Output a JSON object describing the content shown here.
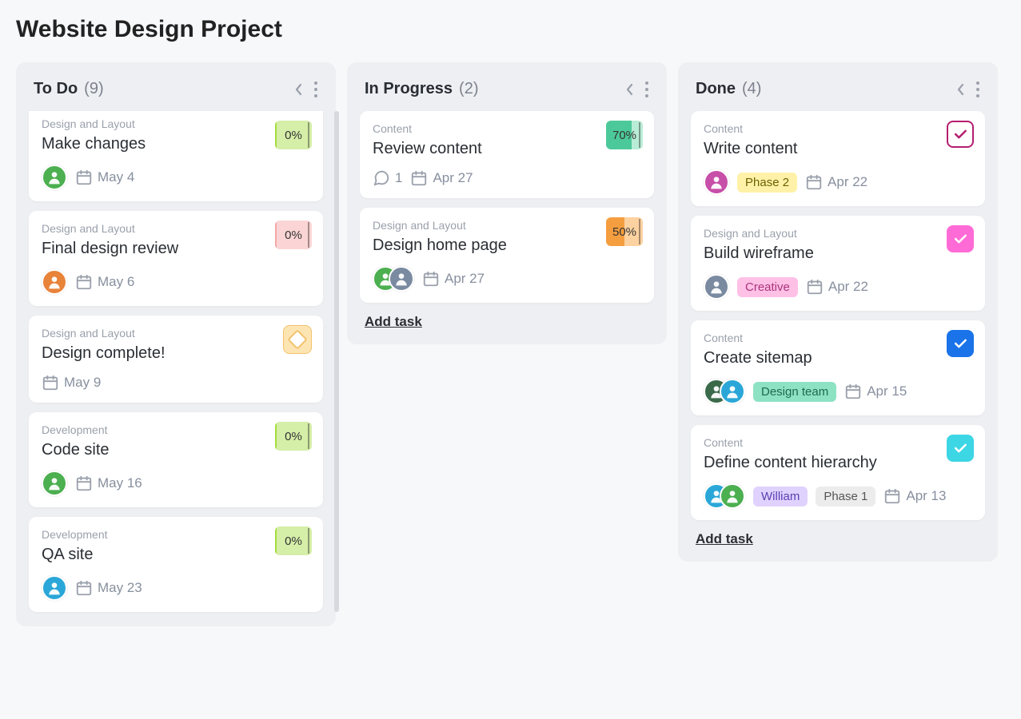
{
  "page": {
    "title": "Website Design Project"
  },
  "add_task_label": "Add task",
  "colors": {
    "progress_green_bg": "#d5eea8",
    "progress_green_fill": "#a4dd3d",
    "progress_pink_bg": "#fbd5d5",
    "progress_pink_fill": "#f5a6a6",
    "progress_teal_bg": "#b9ecd6",
    "progress_teal_fill": "#4cc99a",
    "progress_orange_bg": "#fdd2a1",
    "progress_orange_fill": "#f59e3f",
    "check_magenta": "#b51e6f",
    "check_pink": "#ff6bd6",
    "check_blue": "#1a73e8",
    "check_cyan": "#3dd6e5",
    "tag_yellow": "#fff2a8",
    "tag_pink": "#ffc0e6",
    "tag_green": "#8ee2c4",
    "tag_purple": "#e0d2ff",
    "tag_grey": "#ececec"
  },
  "columns": [
    {
      "title": "To Do",
      "count": "(9)",
      "scrollhint": true,
      "show_add": false,
      "cards": [
        {
          "cut_top": true,
          "category": "Design and Layout",
          "title": "Make changes",
          "badge": {
            "type": "progress",
            "pct": "0%",
            "bg": "progress_green_bg",
            "fill": "progress_green_fill",
            "fillw": "4%"
          },
          "avatars": [
            {
              "bg": "#4caf50"
            }
          ],
          "date": "May 4"
        },
        {
          "category": "Design and Layout",
          "title": "Final design review",
          "badge": {
            "type": "progress",
            "pct": "0%",
            "bg": "progress_pink_bg",
            "fill": "progress_pink_fill",
            "fillw": "4%"
          },
          "avatars": [
            {
              "bg": "#e8833a"
            }
          ],
          "date": "May 6"
        },
        {
          "category": "Design and Layout",
          "title": "Design complete!",
          "badge": {
            "type": "milestone"
          },
          "avatars": [],
          "date": "May 9"
        },
        {
          "category": "Development",
          "title": "Code site",
          "badge": {
            "type": "progress",
            "pct": "0%",
            "bg": "progress_green_bg",
            "fill": "progress_green_fill",
            "fillw": "4%"
          },
          "avatars": [
            {
              "bg": "#4caf50"
            }
          ],
          "date": "May 16"
        },
        {
          "category": "Development",
          "title": "QA site",
          "badge": {
            "type": "progress",
            "pct": "0%",
            "bg": "progress_green_bg",
            "fill": "progress_green_fill",
            "fillw": "4%"
          },
          "avatars": [
            {
              "bg": "#2aa7d8"
            }
          ],
          "date": "May 23"
        }
      ]
    },
    {
      "title": "In Progress",
      "count": "(2)",
      "scrollhint": false,
      "show_add": true,
      "cards": [
        {
          "category": "Content",
          "title": "Review content",
          "badge": {
            "type": "progress",
            "pct": "70%",
            "bg": "progress_teal_bg",
            "fill": "progress_teal_fill",
            "fillw": "70%"
          },
          "avatars": [],
          "comments": "1",
          "date": "Apr 27"
        },
        {
          "category": "Design and Layout",
          "title": "Design home page",
          "badge": {
            "type": "progress",
            "pct": "50%",
            "bg": "progress_orange_bg",
            "fill": "progress_orange_fill",
            "fillw": "50%"
          },
          "avatars": [
            {
              "bg": "#4caf50"
            },
            {
              "bg": "#7a8aa0"
            }
          ],
          "date": "Apr 27"
        }
      ]
    },
    {
      "title": "Done",
      "count": "(4)",
      "scrollhint": false,
      "show_add": true,
      "cards": [
        {
          "category": "Content",
          "title": "Write content",
          "badge": {
            "type": "check",
            "style": "outline",
            "color": "check_magenta"
          },
          "avatars": [
            {
              "bg": "#c74fa8"
            }
          ],
          "tags": [
            {
              "text": "Phase 2",
              "bg": "tag_yellow",
              "fg": "#6b6200"
            }
          ],
          "date": "Apr 22"
        },
        {
          "category": "Design and Layout",
          "title": "Build wireframe",
          "badge": {
            "type": "check",
            "style": "solid",
            "color": "check_pink"
          },
          "avatars": [
            {
              "bg": "#7a8aa0"
            }
          ],
          "tags": [
            {
              "text": "Creative",
              "bg": "tag_pink",
              "fg": "#a8357c"
            }
          ],
          "date": "Apr 22"
        },
        {
          "category": "Content",
          "title": "Create sitemap",
          "badge": {
            "type": "check",
            "style": "solid",
            "color": "check_blue"
          },
          "avatars": [
            {
              "bg": "#3a6a4a"
            },
            {
              "bg": "#2aa7d8"
            }
          ],
          "tags": [
            {
              "text": "Design team",
              "bg": "tag_green",
              "fg": "#1d6b4e"
            }
          ],
          "date": "Apr 15"
        },
        {
          "category": "Content",
          "title": "Define content hierarchy",
          "badge": {
            "type": "check",
            "style": "solid",
            "color": "check_cyan"
          },
          "avatars": [
            {
              "bg": "#2aa7d8"
            },
            {
              "bg": "#4caf50"
            }
          ],
          "tags": [
            {
              "text": "William",
              "bg": "tag_purple",
              "fg": "#5a3fb0"
            },
            {
              "text": "Phase 1",
              "bg": "tag_grey",
              "fg": "#555"
            }
          ],
          "date": "Apr 13"
        }
      ]
    }
  ]
}
